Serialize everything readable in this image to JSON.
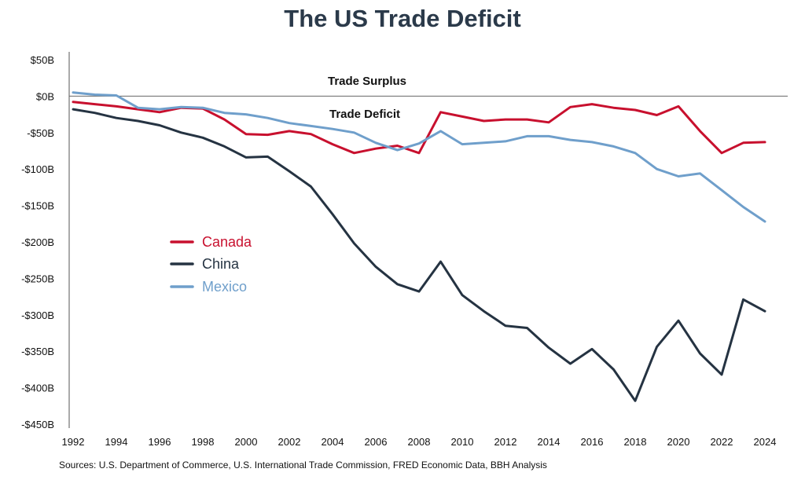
{
  "chart_data": {
    "type": "line",
    "title": "The US Trade Deficit",
    "xlabel": "",
    "ylabel": "",
    "xlim": [
      1992,
      2024
    ],
    "ylim": [
      -450,
      50
    ],
    "y_ticks": [
      {
        "value": 50,
        "label": "$50B"
      },
      {
        "value": 0,
        "label": "$0B"
      },
      {
        "value": -50,
        "label": "-$50B"
      },
      {
        "value": -100,
        "label": "-$100B"
      },
      {
        "value": -150,
        "label": "-$150B"
      },
      {
        "value": -200,
        "label": "-$200B"
      },
      {
        "value": -250,
        "label": "-$250B"
      },
      {
        "value": -300,
        "label": "-$300B"
      },
      {
        "value": -350,
        "label": "-$350B"
      },
      {
        "value": -400,
        "label": "-$400B"
      },
      {
        "value": -450,
        "label": "-$450B"
      }
    ],
    "x_ticks": [
      1992,
      1994,
      1996,
      1998,
      2000,
      2002,
      2004,
      2006,
      2008,
      2010,
      2012,
      2014,
      2016,
      2018,
      2020,
      2022,
      2024
    ],
    "x": [
      1992,
      1993,
      1994,
      1995,
      1996,
      1997,
      1998,
      1999,
      2000,
      2001,
      2002,
      2003,
      2004,
      2005,
      2006,
      2007,
      2008,
      2009,
      2010,
      2011,
      2012,
      2013,
      2014,
      2015,
      2016,
      2017,
      2018,
      2019,
      2020,
      2021,
      2022,
      2023,
      2024
    ],
    "series": [
      {
        "name": "Canada",
        "color": "#c8102e",
        "values": [
          -8,
          -11,
          -14,
          -18,
          -22,
          -16,
          -17,
          -32,
          -52,
          -53,
          -48,
          -52,
          -66,
          -78,
          -72,
          -68,
          -78,
          -22,
          -28,
          -34,
          -32,
          -32,
          -36,
          -15,
          -11,
          -16,
          -19,
          -26,
          -14,
          -48,
          -78,
          -64,
          -63
        ]
      },
      {
        "name": "China",
        "color": "#253342",
        "values": [
          -18,
          -23,
          -30,
          -34,
          -40,
          -50,
          -57,
          -69,
          -84,
          -83,
          -103,
          -124,
          -162,
          -202,
          -234,
          -258,
          -268,
          -227,
          -273,
          -295,
          -315,
          -318,
          -345,
          -367,
          -347,
          -375,
          -418,
          -344,
          -308,
          -353,
          -382,
          -279,
          -295
        ]
      },
      {
        "name": "Mexico",
        "color": "#6f9fcb",
        "values": [
          5,
          2,
          1,
          -16,
          -18,
          -15,
          -16,
          -23,
          -25,
          -30,
          -37,
          -41,
          -45,
          -50,
          -64,
          -74,
          -65,
          -48,
          -66,
          -64,
          -62,
          -55,
          -55,
          -60,
          -63,
          -69,
          -78,
          -100,
          -110,
          -106,
          -129,
          -152,
          -172
        ]
      }
    ],
    "annotations": {
      "surplus": "Trade Surplus",
      "deficit": "Trade Deficit"
    },
    "legend_position": "left-middle",
    "grid": false
  },
  "footer": {
    "source": "Sources: U.S. Department of Commerce, U.S. International Trade Commission, FRED Economic Data, BBH Analysis"
  }
}
